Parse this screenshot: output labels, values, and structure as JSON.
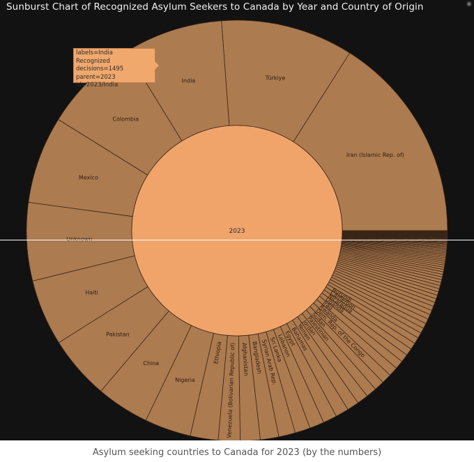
{
  "chart_data": {
    "type": "sunburst",
    "title": "Sunburst Chart of Recognized Asylum Seekers to Canada by Year and Country of Origin",
    "root": {
      "label": "2023"
    },
    "countries": [
      {
        "label": "Iran (Islamic Rep. of)",
        "value": 3150
      },
      {
        "label": "Türkiye",
        "value": 2000
      },
      {
        "label": "India",
        "value": 1495
      },
      {
        "label": "Colombia",
        "value": 1450
      },
      {
        "label": "Mexico",
        "value": 1320
      },
      {
        "label": "Unknown",
        "value": 1180
      },
      {
        "label": "Haiti",
        "value": 1000
      },
      {
        "label": "Pakistan",
        "value": 960
      },
      {
        "label": "China",
        "value": 800
      },
      {
        "label": "Nigeria",
        "value": 700
      },
      {
        "label": "Ethiopia",
        "value": 420
      },
      {
        "label": "Venezuela (Bolivarian Republic of)",
        "value": 330
      },
      {
        "label": "Afghanistan",
        "value": 300
      },
      {
        "label": "Bangladesh",
        "value": 280
      },
      {
        "label": "Syrian Arab Rep.",
        "value": 250
      },
      {
        "label": "Sri Lanka",
        "value": 230
      },
      {
        "label": "Lebanon",
        "value": 220
      },
      {
        "label": "Egypt",
        "value": 210
      },
      {
        "label": "Bahamas",
        "value": 200
      },
      {
        "label": "Yemen",
        "value": 180
      },
      {
        "label": "Jordan",
        "value": 170
      },
      {
        "label": "Palestinian",
        "value": 160
      },
      {
        "label": "Sudan",
        "value": 150
      },
      {
        "label": "Dem. Rep. of the Congo",
        "value": 150
      },
      {
        "label": "Rwanda",
        "value": 140
      },
      {
        "label": "Iraq",
        "value": 130
      },
      {
        "label": "Uganda",
        "value": 120
      },
      {
        "label": "Nicaragua",
        "value": 110
      },
      {
        "label": "Cameroon",
        "value": 100
      },
      {
        "label": "Burundi",
        "value": 95
      },
      {
        "label": "",
        "value": 85
      },
      {
        "label": "",
        "value": 80
      },
      {
        "label": "",
        "value": 78
      },
      {
        "label": "",
        "value": 75
      },
      {
        "label": "",
        "value": 72
      },
      {
        "label": "",
        "value": 68
      },
      {
        "label": "",
        "value": 65
      },
      {
        "label": "",
        "value": 62
      },
      {
        "label": "",
        "value": 58
      },
      {
        "label": "",
        "value": 55
      },
      {
        "label": "",
        "value": 52
      },
      {
        "label": "",
        "value": 50
      },
      {
        "label": "",
        "value": 48
      },
      {
        "label": "",
        "value": 46
      },
      {
        "label": "",
        "value": 44
      },
      {
        "label": "",
        "value": 42
      },
      {
        "label": "",
        "value": 40
      },
      {
        "label": "",
        "value": 38
      },
      {
        "label": "",
        "value": 36
      },
      {
        "label": "",
        "value": 34
      },
      {
        "label": "",
        "value": 32
      },
      {
        "label": "",
        "value": 30
      },
      {
        "label": "",
        "value": 28
      },
      {
        "label": "",
        "value": 27
      },
      {
        "label": "",
        "value": 26
      },
      {
        "label": "",
        "value": 25
      },
      {
        "label": "",
        "value": 24
      },
      {
        "label": "",
        "value": 23
      },
      {
        "label": "",
        "value": 22
      },
      {
        "label": "",
        "value": 21
      },
      {
        "label": "",
        "value": 20
      },
      {
        "label": "",
        "value": 19
      },
      {
        "label": "",
        "value": 18
      },
      {
        "label": "",
        "value": 17
      },
      {
        "label": "",
        "value": 16
      },
      {
        "label": "",
        "value": 15
      },
      {
        "label": "",
        "value": 14
      },
      {
        "label": "",
        "value": 13
      },
      {
        "label": "",
        "value": 12
      },
      {
        "label": "",
        "value": 11
      },
      {
        "label": "",
        "value": 10
      },
      {
        "label": "",
        "value": 10
      },
      {
        "label": "",
        "value": 9
      },
      {
        "label": "",
        "value": 9
      },
      {
        "label": "",
        "value": 8
      },
      {
        "label": "",
        "value": 8
      },
      {
        "label": "",
        "value": 7
      },
      {
        "label": "",
        "value": 7
      },
      {
        "label": "",
        "value": 6
      },
      {
        "label": "",
        "value": 6
      },
      {
        "label": "",
        "value": 5
      },
      {
        "label": "",
        "value": 5
      },
      {
        "label": "",
        "value": 5
      },
      {
        "label": "",
        "value": 4
      },
      {
        "label": "",
        "value": 4
      },
      {
        "label": "",
        "value": 4
      },
      {
        "label": "",
        "value": 3
      },
      {
        "label": "",
        "value": 3
      },
      {
        "label": "",
        "value": 3
      },
      {
        "label": "",
        "value": 3
      },
      {
        "label": "",
        "value": 2
      },
      {
        "label": "",
        "value": 2
      },
      {
        "label": "",
        "value": 2
      },
      {
        "label": "",
        "value": 2
      },
      {
        "label": "",
        "value": 2
      },
      {
        "label": "",
        "value": 1
      },
      {
        "label": "",
        "value": 1
      },
      {
        "label": "",
        "value": 1
      },
      {
        "label": "",
        "value": 1
      },
      {
        "label": "",
        "value": 1
      }
    ],
    "colors": {
      "root": "#f0a46a",
      "leaf": "#ad7b50",
      "stroke": "#3a2616",
      "background": "#121212"
    }
  },
  "tooltip": {
    "line1": "labels=India",
    "line2": "Recognized decisions=1495",
    "line3": "parent=2023",
    "line4": "id=2023/India"
  },
  "caption": "Asylum seeking countries to Canada for 2023 (by the numbers)"
}
